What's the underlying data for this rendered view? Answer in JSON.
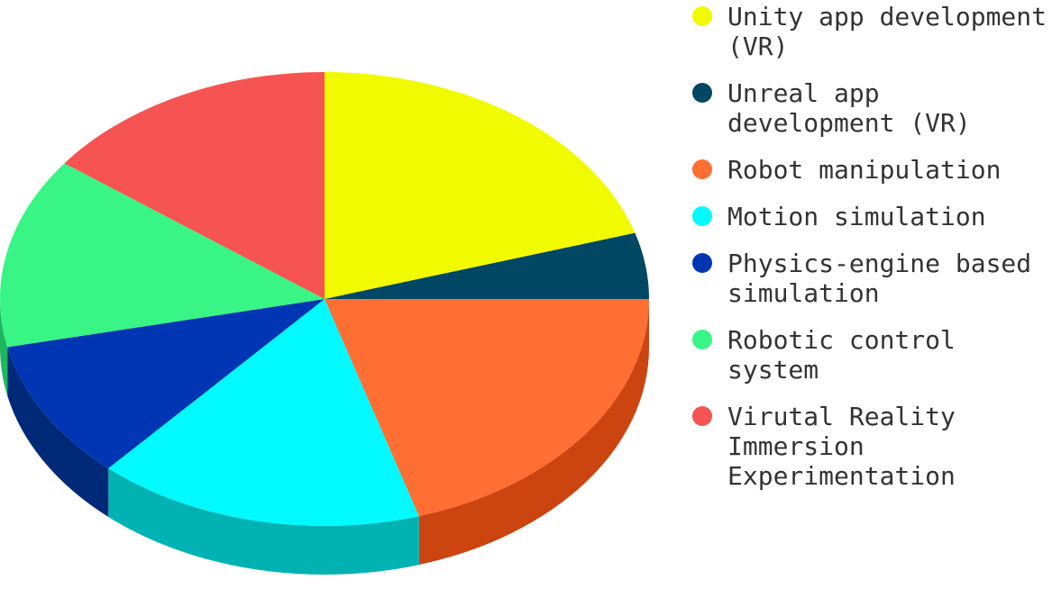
{
  "chart_data": {
    "type": "pie",
    "style": "3d",
    "legend_position": "right",
    "categories": [
      "Unity app development (VR)",
      "Unreal app development (VR)",
      "Robot manipulation",
      "Motion simulation",
      "Physics-engine based simulation",
      "Robotic control system",
      "Virutal Reality Immersion Experimentation"
    ],
    "values": [
      20.3,
      4.7,
      20.3,
      16.3,
      10.0,
      13.6,
      14.8
    ],
    "unit": "percent",
    "colors": [
      "#f2fa00",
      "#004763",
      "#ff6e33",
      "#00faff",
      "#0036b3",
      "#38f585",
      "#f55452"
    ],
    "side_colors": [
      "#b4b800",
      "#00303f",
      "#cc4410",
      "#00b2b2",
      "#002a78",
      "#1eb85c",
      "#c02f2d"
    ]
  },
  "legend": {
    "items": [
      {
        "label": "Unity app development (VR)",
        "color": "#f2fa00"
      },
      {
        "label": "Unreal app development (VR)",
        "color": "#004763"
      },
      {
        "label": "Robot manipulation",
        "color": "#ff6e33"
      },
      {
        "label": "Motion simulation",
        "color": "#00faff"
      },
      {
        "label": "Physics-engine based simulation",
        "color": "#0036b3"
      },
      {
        "label": "Robotic control system",
        "color": "#38f585"
      },
      {
        "label": "Virutal Reality Immersion Experimentation",
        "color": "#f55452"
      }
    ]
  }
}
